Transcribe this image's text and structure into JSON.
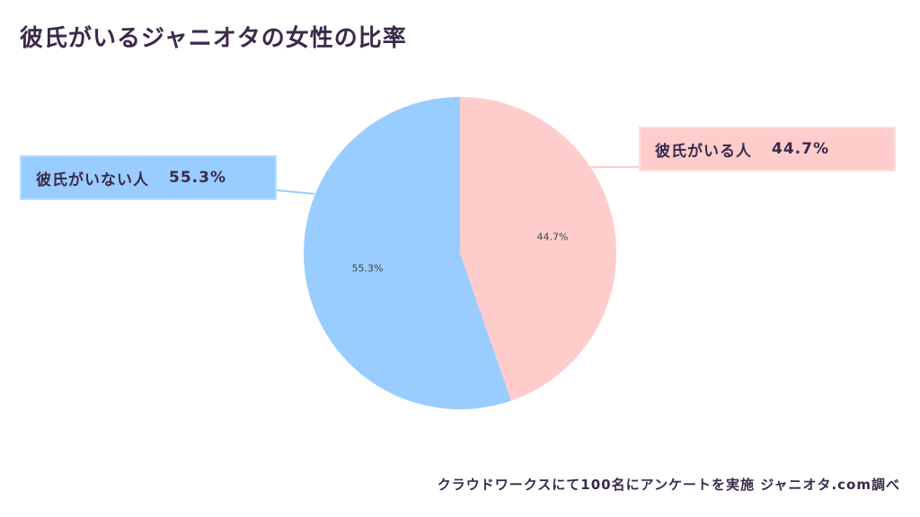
{
  "title": "彼氏がいるジャニオタの女性の比率",
  "footer": "クラウドワークスにて100名にアンケートを実施 ジャニオタ.com調べ",
  "chart_data": {
    "type": "pie",
    "categories": [
      "彼氏がいる人",
      "彼氏がいない人"
    ],
    "values": [
      44.7,
      55.3
    ],
    "labels": [
      "44.7%",
      "55.3%"
    ],
    "colors": [
      "#ffcccc",
      "#99ccff"
    ]
  },
  "callouts": {
    "with": {
      "label": "彼氏がいる人",
      "pct": "44.7%"
    },
    "without": {
      "label": "彼氏がいない人",
      "pct": "55.3%"
    }
  }
}
